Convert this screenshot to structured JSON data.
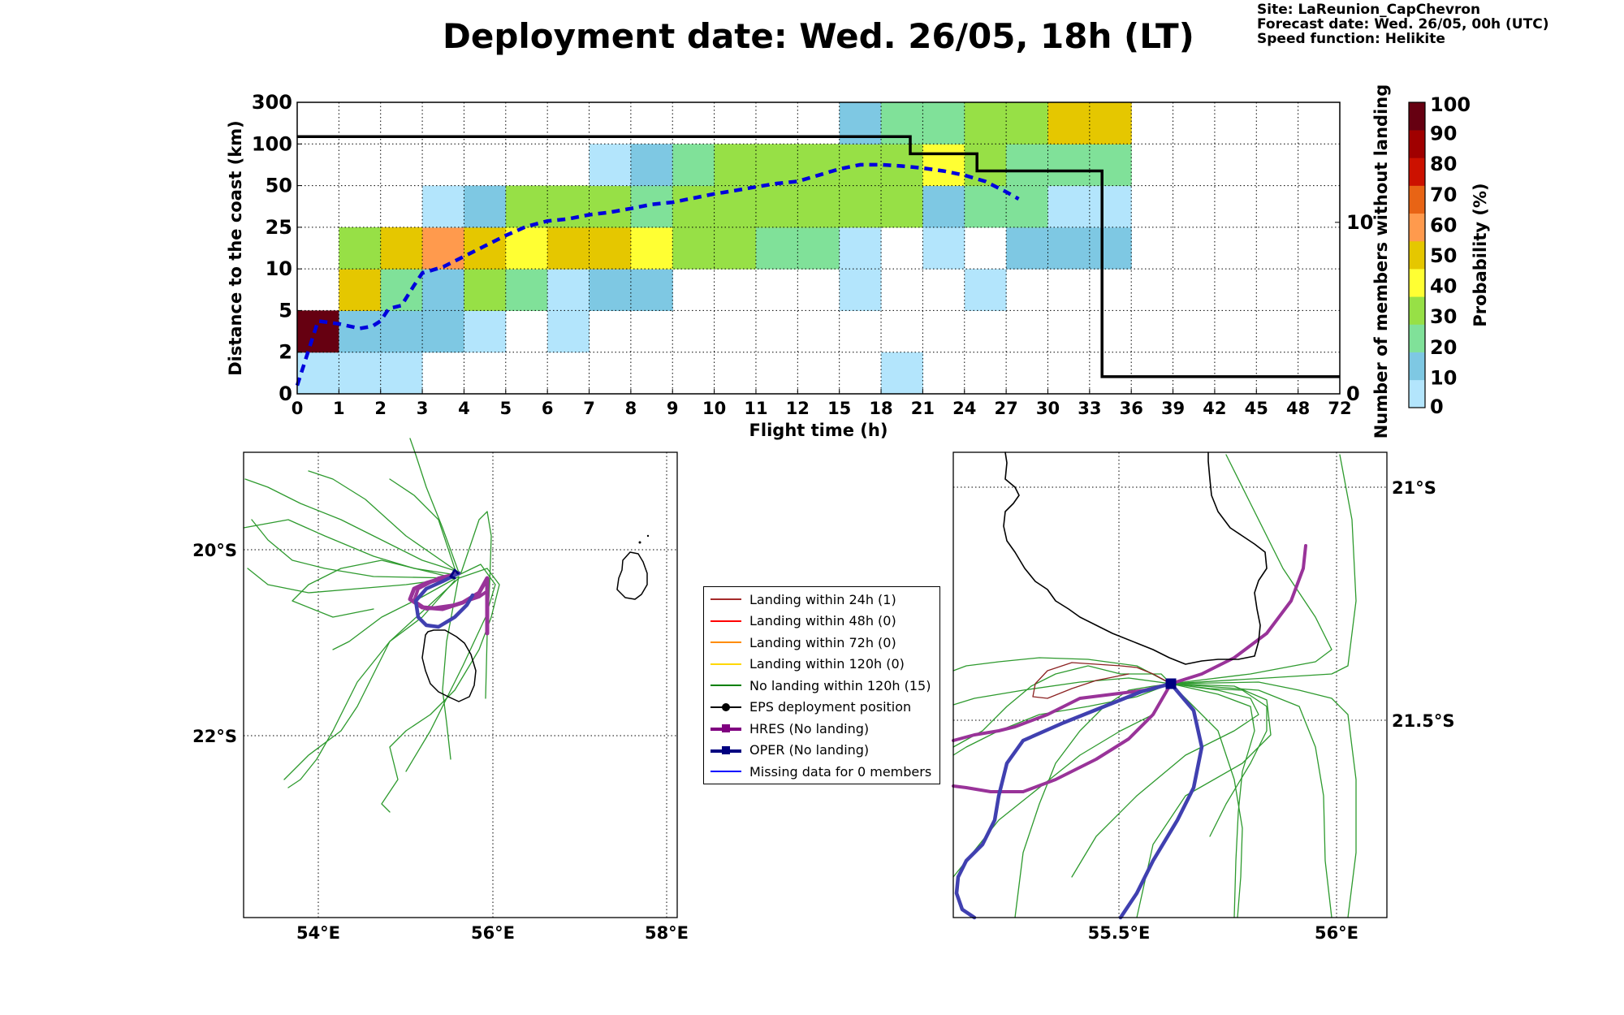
{
  "title": "Deployment date: Wed. 26/05, 18h (LT)",
  "info": {
    "site": "Site: LaReunion_CapChevron",
    "forecast": "Forecast date: Wed. 26/05, 00h (UTC)",
    "speed": "Speed function: Helikite"
  },
  "chart_data": [
    {
      "type": "heatmap",
      "xlabel": "Flight time (h)",
      "ylabel": "Distance to the coast (km)",
      "y2label": "Number of members without landing",
      "x_ticks": [
        "0",
        "1",
        "2",
        "3",
        "4",
        "5",
        "6",
        "7",
        "8",
        "9",
        "10",
        "11",
        "12",
        "15",
        "18",
        "21",
        "24",
        "27",
        "30",
        "33",
        "36",
        "39",
        "42",
        "45",
        "48",
        "72"
      ],
      "y_ticks": [
        "0",
        "2",
        "5",
        "10",
        "25",
        "50",
        "100",
        "300"
      ],
      "y2_ticks": [
        "0",
        "10"
      ],
      "y2lim": [
        0,
        17
      ],
      "grid": true,
      "colorbar": {
        "label": "Probability (%)",
        "ticks": [
          "0",
          "10",
          "20",
          "30",
          "40",
          "50",
          "60",
          "70",
          "80",
          "90",
          "100"
        ],
        "colors": [
          "#b3e5fc",
          "#7ec8e3",
          "#80e199",
          "#97e046",
          "#ffff33",
          "#e5c700",
          "#ff9a4d",
          "#e86415",
          "#cc1100",
          "#a00000",
          "#660011"
        ]
      },
      "cells": [
        {
          "x": 0,
          "y": 0,
          "p": 0
        },
        {
          "x": 1,
          "y": 0,
          "p": 0
        },
        {
          "x": 2,
          "y": 0,
          "p": 0
        },
        {
          "x": 14,
          "y": 0,
          "p": 0
        },
        {
          "x": 0,
          "y": 1,
          "p": 100
        },
        {
          "x": 1,
          "y": 1,
          "p": 10
        },
        {
          "x": 2,
          "y": 1,
          "p": 10
        },
        {
          "x": 3,
          "y": 1,
          "p": 10
        },
        {
          "x": 4,
          "y": 1,
          "p": 0
        },
        {
          "x": 6,
          "y": 1,
          "p": 0
        },
        {
          "x": 1,
          "y": 2,
          "p": 50
        },
        {
          "x": 2,
          "y": 2,
          "p": 20
        },
        {
          "x": 3,
          "y": 2,
          "p": 10
        },
        {
          "x": 4,
          "y": 2,
          "p": 30
        },
        {
          "x": 5,
          "y": 2,
          "p": 20
        },
        {
          "x": 6,
          "y": 2,
          "p": 0
        },
        {
          "x": 7,
          "y": 2,
          "p": 10
        },
        {
          "x": 8,
          "y": 2,
          "p": 10
        },
        {
          "x": 13,
          "y": 2,
          "p": 0
        },
        {
          "x": 16,
          "y": 2,
          "p": 0
        },
        {
          "x": 1,
          "y": 3,
          "p": 30
        },
        {
          "x": 2,
          "y": 3,
          "p": 50
        },
        {
          "x": 3,
          "y": 3,
          "p": 60
        },
        {
          "x": 4,
          "y": 3,
          "p": 50
        },
        {
          "x": 5,
          "y": 3,
          "p": 40
        },
        {
          "x": 6,
          "y": 3,
          "p": 50
        },
        {
          "x": 7,
          "y": 3,
          "p": 50
        },
        {
          "x": 8,
          "y": 3,
          "p": 40
        },
        {
          "x": 9,
          "y": 3,
          "p": 30
        },
        {
          "x": 10,
          "y": 3,
          "p": 30
        },
        {
          "x": 11,
          "y": 3,
          "p": 20
        },
        {
          "x": 12,
          "y": 3,
          "p": 20
        },
        {
          "x": 13,
          "y": 3,
          "p": 0
        },
        {
          "x": 15,
          "y": 3,
          "p": 0
        },
        {
          "x": 17,
          "y": 3,
          "p": 10
        },
        {
          "x": 18,
          "y": 3,
          "p": 10
        },
        {
          "x": 19,
          "y": 3,
          "p": 10
        },
        {
          "x": 3,
          "y": 4,
          "p": 0
        },
        {
          "x": 4,
          "y": 4,
          "p": 10
        },
        {
          "x": 5,
          "y": 4,
          "p": 30
        },
        {
          "x": 6,
          "y": 4,
          "p": 30
        },
        {
          "x": 7,
          "y": 4,
          "p": 30
        },
        {
          "x": 8,
          "y": 4,
          "p": 20
        },
        {
          "x": 9,
          "y": 4,
          "p": 30
        },
        {
          "x": 10,
          "y": 4,
          "p": 30
        },
        {
          "x": 11,
          "y": 4,
          "p": 30
        },
        {
          "x": 12,
          "y": 4,
          "p": 30
        },
        {
          "x": 13,
          "y": 4,
          "p": 30
        },
        {
          "x": 14,
          "y": 4,
          "p": 30
        },
        {
          "x": 15,
          "y": 4,
          "p": 10
        },
        {
          "x": 16,
          "y": 4,
          "p": 20
        },
        {
          "x": 17,
          "y": 4,
          "p": 20
        },
        {
          "x": 18,
          "y": 4,
          "p": 0
        },
        {
          "x": 19,
          "y": 4,
          "p": 0
        },
        {
          "x": 7,
          "y": 5,
          "p": 0
        },
        {
          "x": 8,
          "y": 5,
          "p": 10
        },
        {
          "x": 9,
          "y": 5,
          "p": 20
        },
        {
          "x": 10,
          "y": 5,
          "p": 30
        },
        {
          "x": 11,
          "y": 5,
          "p": 30
        },
        {
          "x": 12,
          "y": 5,
          "p": 30
        },
        {
          "x": 13,
          "y": 5,
          "p": 30
        },
        {
          "x": 14,
          "y": 5,
          "p": 30
        },
        {
          "x": 15,
          "y": 5,
          "p": 40
        },
        {
          "x": 16,
          "y": 5,
          "p": 30
        },
        {
          "x": 17,
          "y": 5,
          "p": 20
        },
        {
          "x": 18,
          "y": 5,
          "p": 20
        },
        {
          "x": 19,
          "y": 5,
          "p": 20
        },
        {
          "x": 13,
          "y": 6,
          "p": 10
        },
        {
          "x": 14,
          "y": 6,
          "p": 20
        },
        {
          "x": 15,
          "y": 6,
          "p": 20
        },
        {
          "x": 16,
          "y": 6,
          "p": 30
        },
        {
          "x": 17,
          "y": 6,
          "p": 30
        },
        {
          "x": 18,
          "y": 6,
          "p": 50
        },
        {
          "x": 19,
          "y": 6,
          "p": 50
        }
      ],
      "series": [
        {
          "type": "line",
          "style": "dashed",
          "color": "#0000dd",
          "x": [
            0,
            0.5,
            1,
            1.5,
            1.8,
            2,
            2.2,
            2.5,
            2.8,
            3,
            3.5,
            4,
            4.5,
            5,
            5.5,
            6,
            6.5,
            7,
            7.5,
            8,
            8.5,
            9,
            9.5,
            10,
            10.5,
            11,
            11.5,
            12,
            12.5,
            13,
            13.5,
            14,
            14.5,
            15,
            15.5,
            16,
            16.5,
            17,
            17.3
          ],
          "y": [
            0.2,
            1.75,
            1.68,
            1.57,
            1.62,
            1.75,
            2.05,
            2.12,
            2.6,
            2.9,
            3.05,
            3.3,
            3.55,
            3.8,
            4.02,
            4.15,
            4.2,
            4.3,
            4.36,
            4.45,
            4.55,
            4.6,
            4.7,
            4.8,
            4.88,
            4.97,
            5.05,
            5.1,
            5.25,
            5.4,
            5.5,
            5.5,
            5.47,
            5.42,
            5.35,
            5.25,
            5.1,
            4.85,
            4.68
          ]
        },
        {
          "type": "step",
          "color": "#000000",
          "x": [
            0,
            14.7,
            14.7,
            16.3,
            16.3,
            19.3,
            19.3,
            25
          ],
          "y2": [
            15,
            15,
            14,
            14,
            13,
            13,
            1,
            1
          ]
        }
      ]
    },
    {
      "type": "map",
      "x_ticks": [
        "54°E",
        "56°E",
        "58°E"
      ],
      "y_ticks": [
        "20°S",
        "22°S"
      ]
    },
    {
      "type": "map",
      "x_ticks": [
        "55.5°E",
        "56°E"
      ],
      "y_ticks": [
        "21°S",
        "21.5°S"
      ]
    }
  ],
  "legend": [
    {
      "label": "Landing within 24h (1)",
      "color": "#a52a2a",
      "marker": "none"
    },
    {
      "label": "Landing within 48h (0)",
      "color": "#ff0000",
      "marker": "none"
    },
    {
      "label": "Landing within 72h (0)",
      "color": "#ff8c00",
      "marker": "none"
    },
    {
      "label": "Landing within 120h (0)",
      "color": "#ffd700",
      "marker": "none"
    },
    {
      "label": "No landing within 120h (15)",
      "color": "#008000",
      "marker": "none"
    },
    {
      "label": "EPS deployment position",
      "color": "#000000",
      "marker": "circle"
    },
    {
      "label": "HRES (No landing)",
      "color": "#800080",
      "marker": "square"
    },
    {
      "label": "OPER (No landing)",
      "color": "#000080",
      "marker": "square"
    },
    {
      "label": "Missing data for 0 members",
      "color": "#0000ff",
      "marker": "none"
    }
  ]
}
